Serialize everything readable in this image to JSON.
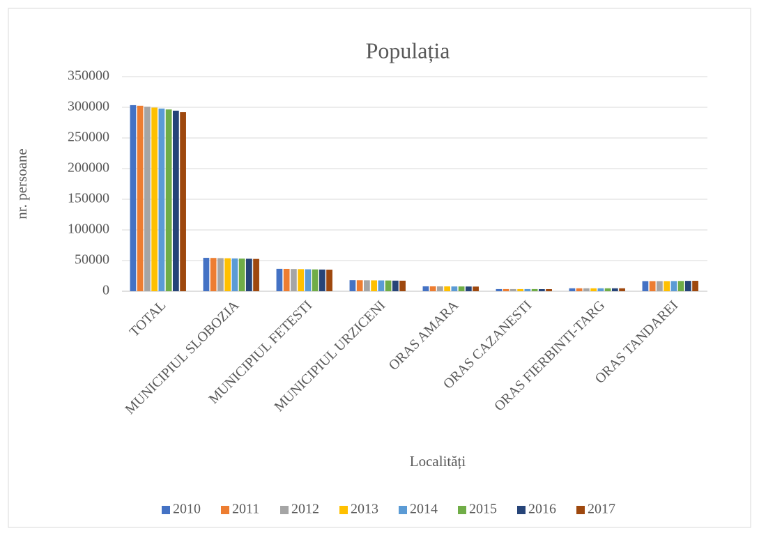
{
  "chart_data": {
    "type": "bar",
    "title": "Populația",
    "x_label": "Localități",
    "y_label": "nr. persoane",
    "categories": [
      "TOTAL",
      "MUNICIPIUL SLOBOZIA",
      "MUNICIPIUL FETESTI",
      "MUNICIPIUL URZICENI",
      "ORAS AMARA",
      "ORAS CAZANESTI",
      "ORAS FIERBINTI-TARG",
      "ORAS TANDAREI"
    ],
    "series": [
      {
        "name": "2010",
        "color": "#4472c4",
        "values": [
          303500,
          54500,
          36500,
          18000,
          8000,
          3500,
          4800,
          16500
        ]
      },
      {
        "name": "2011",
        "color": "#ed7d31",
        "values": [
          302500,
          54300,
          36400,
          17900,
          8000,
          3500,
          4800,
          16500
        ]
      },
      {
        "name": "2012",
        "color": "#a5a5a5",
        "values": [
          301000,
          54000,
          36200,
          17800,
          7900,
          3500,
          4800,
          16500
        ]
      },
      {
        "name": "2013",
        "color": "#ffc000",
        "values": [
          299500,
          53800,
          36000,
          17700,
          7900,
          3500,
          4800,
          16500
        ]
      },
      {
        "name": "2014",
        "color": "#5b9bd5",
        "values": [
          298000,
          53500,
          35800,
          17600,
          7800,
          3500,
          4800,
          16600
        ]
      },
      {
        "name": "2015",
        "color": "#70ad47",
        "values": [
          296500,
          53200,
          35600,
          17500,
          7800,
          3500,
          4800,
          16700
        ]
      },
      {
        "name": "2016",
        "color": "#264478",
        "values": [
          294500,
          53000,
          35400,
          17300,
          7700,
          3400,
          4800,
          16900
        ]
      },
      {
        "name": "2017",
        "color": "#9e480e",
        "values": [
          292000,
          52700,
          35200,
          17200,
          7600,
          3400,
          4800,
          17000
        ]
      }
    ],
    "ylim": [
      0,
      350000
    ],
    "yticks": [
      0,
      50000,
      100000,
      150000,
      200000,
      250000,
      300000,
      350000
    ],
    "grid": true,
    "legend": "bottom"
  }
}
